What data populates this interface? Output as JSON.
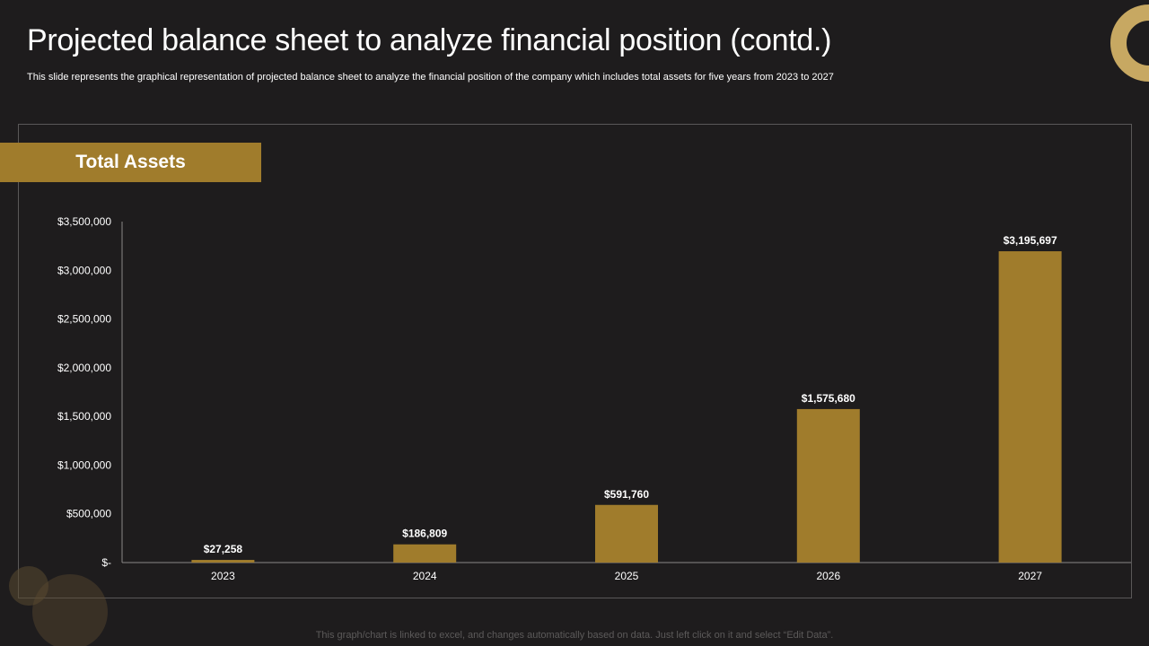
{
  "slide": {
    "title": "Projected balance sheet to analyze financial position (contd.)",
    "subtitle": "This slide represents the graphical representation of projected balance sheet to analyze  the financial position of the company which includes total assets for five years from 2023 to 2027",
    "section_label": "Total Assets",
    "footer_note": "This graph/chart is linked to excel,  and changes automatically based on data. Just left click on it and select “Edit Data”."
  },
  "colors": {
    "background": "#1e1c1d",
    "accent": "#a07c2c",
    "text": "#ffffff"
  },
  "chart_data": {
    "type": "bar",
    "title": "Total Assets",
    "categories": [
      "2023",
      "2024",
      "2025",
      "2026",
      "2027"
    ],
    "values": [
      27258,
      186809,
      591760,
      1575680,
      3195697
    ],
    "data_labels": [
      "$27,258",
      "$186,809",
      "$591,760",
      "$1,575,680",
      "$3,195,697"
    ],
    "ylim": [
      0,
      3500000
    ],
    "yticks": [
      0,
      500000,
      1000000,
      1500000,
      2000000,
      2500000,
      3000000,
      3500000
    ],
    "ytick_labels": [
      "$-",
      "$500,000",
      "$1,000,000",
      "$1,500,000",
      "$2,000,000",
      "$2,500,000",
      "$3,000,000",
      "$3,500,000"
    ],
    "xlabel": "",
    "ylabel": "",
    "grid": false,
    "legend": "none"
  }
}
